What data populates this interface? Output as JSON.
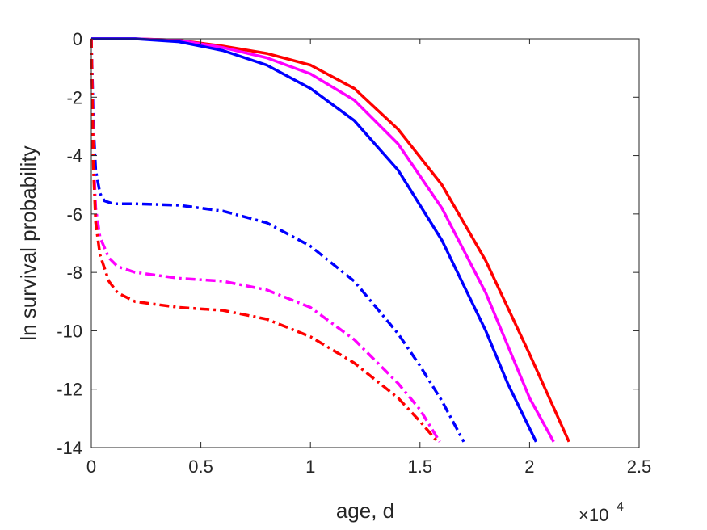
{
  "chart_data": {
    "type": "line",
    "title": "",
    "xlabel": "age, d",
    "ylabel": "ln survival probability",
    "x_exponent_base": "×10",
    "x_exponent_power": "4",
    "xlim": [
      0,
      25000
    ],
    "ylim": [
      -14,
      0
    ],
    "x_ticks": [
      0,
      5000,
      10000,
      15000,
      20000,
      25000
    ],
    "x_tick_labels": [
      "0",
      "0.5",
      "1",
      "1.5",
      "2",
      "2.5"
    ],
    "y_ticks": [
      0,
      -2,
      -4,
      -6,
      -8,
      -10,
      -12,
      -14
    ],
    "y_tick_labels": [
      "0",
      "-2",
      "-4",
      "-6",
      "-8",
      "-10",
      "-12",
      "-14"
    ],
    "grid": false,
    "legend": "none",
    "series": [
      {
        "color": "#ff0000",
        "style": "solid",
        "x": [
          0,
          2000,
          4000,
          6000,
          8000,
          10000,
          12000,
          14000,
          16000,
          18000,
          20000,
          21800
        ],
        "y": [
          0,
          0,
          -0.05,
          -0.25,
          -0.5,
          -0.9,
          -1.7,
          -3.1,
          -5.0,
          -7.6,
          -10.8,
          -13.8
        ]
      },
      {
        "color": "#ff00ff",
        "style": "solid",
        "x": [
          0,
          2000,
          4000,
          6000,
          8000,
          10000,
          12000,
          14000,
          16000,
          18000,
          20000,
          21100
        ],
        "y": [
          0,
          0,
          -0.05,
          -0.3,
          -0.65,
          -1.2,
          -2.1,
          -3.6,
          -5.8,
          -8.7,
          -12.3,
          -13.8
        ]
      },
      {
        "color": "#0000ff",
        "style": "solid",
        "x": [
          0,
          2000,
          4000,
          6000,
          8000,
          10000,
          12000,
          14000,
          16000,
          18000,
          19000,
          20300
        ],
        "y": [
          0,
          0,
          -0.1,
          -0.4,
          -0.9,
          -1.7,
          -2.8,
          -4.5,
          -6.9,
          -10.0,
          -11.8,
          -13.8
        ]
      },
      {
        "color": "#0000ff",
        "style": "dashdot",
        "x": [
          0,
          100,
          200,
          400,
          600,
          1000,
          2000,
          4000,
          6000,
          8000,
          10000,
          12000,
          14000,
          15000,
          16000,
          17000
        ],
        "y": [
          0,
          -3.0,
          -4.5,
          -5.3,
          -5.55,
          -5.65,
          -5.65,
          -5.7,
          -5.9,
          -6.3,
          -7.1,
          -8.3,
          -10.1,
          -11.2,
          -12.4,
          -13.8
        ]
      },
      {
        "color": "#ff00ff",
        "style": "dashdot",
        "x": [
          0,
          100,
          200,
          400,
          800,
          1200,
          2000,
          4000,
          6000,
          8000,
          10000,
          12000,
          14000,
          15000,
          15900
        ],
        "y": [
          0,
          -4.0,
          -5.8,
          -6.8,
          -7.5,
          -7.8,
          -8.0,
          -8.2,
          -8.3,
          -8.6,
          -9.2,
          -10.3,
          -11.8,
          -12.7,
          -13.8
        ]
      },
      {
        "color": "#ff0000",
        "style": "dashdot",
        "x": [
          0,
          100,
          200,
          400,
          800,
          1200,
          2000,
          4000,
          6000,
          8000,
          10000,
          12000,
          14000,
          15000,
          15800
        ],
        "y": [
          0,
          -4.5,
          -6.3,
          -7.4,
          -8.3,
          -8.7,
          -9.0,
          -9.2,
          -9.3,
          -9.6,
          -10.2,
          -11.1,
          -12.3,
          -13.1,
          -13.8
        ]
      }
    ]
  }
}
